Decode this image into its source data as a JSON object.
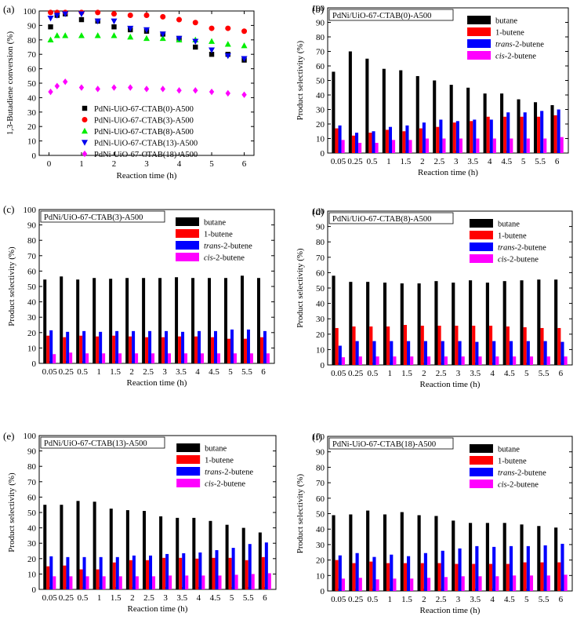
{
  "figure": {
    "panels": [
      "(a)",
      "(b)",
      "(c)",
      "(d)",
      "(e)",
      "(f)"
    ]
  },
  "chart_data": [
    {
      "panel": "(a)",
      "type": "scatter",
      "xlabel": "Reaction time (h)",
      "ylabel": "1,3-Butadiene conversion (%)",
      "xlim": [
        -0.3,
        6.3
      ],
      "ylim": [
        0,
        100
      ],
      "xticks": [
        0,
        1,
        2,
        3,
        4,
        5,
        6
      ],
      "yticks": [
        0,
        10,
        20,
        30,
        40,
        50,
        60,
        70,
        80,
        90,
        100
      ],
      "legend_position": "lower-center",
      "series": [
        {
          "name": "PdNi-UiO-67-CTAB(0)-A500",
          "color": "#000000",
          "marker": "square",
          "x": [
            0.05,
            0.25,
            0.5,
            1,
            1.5,
            2,
            2.5,
            3,
            3.5,
            4,
            4.5,
            5,
            5.5,
            6
          ],
          "y": [
            89,
            97,
            98,
            94,
            93,
            89,
            87,
            86,
            84,
            81,
            75,
            70,
            70,
            66
          ]
        },
        {
          "name": "PdNi-UiO-67-CTAB(3)-A500",
          "color": "#ff0000",
          "marker": "circle",
          "x": [
            0.05,
            0.25,
            0.5,
            1,
            1.5,
            2,
            2.5,
            3,
            3.5,
            4,
            4.5,
            5,
            5.5,
            6
          ],
          "y": [
            99,
            99,
            99,
            99,
            99,
            98,
            97,
            97,
            96,
            94,
            92,
            88,
            88,
            86
          ]
        },
        {
          "name": "PdNi-UiO-67-CTAB(8)-A500",
          "color": "#00ee00",
          "marker": "triangle-up",
          "x": [
            0.05,
            0.25,
            0.5,
            1,
            1.5,
            2,
            2.5,
            3,
            3.5,
            4,
            4.5,
            5,
            5.5,
            6
          ],
          "y": [
            80,
            83,
            83,
            83,
            83,
            83,
            82,
            81,
            81,
            80,
            80,
            79,
            77,
            76
          ]
        },
        {
          "name": "PdNi-UiO-67-CTAB(13)-A500",
          "color": "#0000ee",
          "marker": "triangle-down",
          "x": [
            0.05,
            0.25,
            0.5,
            1,
            1.5,
            2,
            2.5,
            3,
            3.5,
            4,
            4.5,
            5,
            5.5,
            6
          ],
          "y": [
            95,
            97,
            98,
            98,
            93,
            93,
            88,
            87,
            84,
            81,
            79,
            73,
            69,
            67
          ]
        },
        {
          "name": "PdNi-UiO-67-CTAB(18)-A500",
          "color": "#ff00ff",
          "marker": "diamond",
          "x": [
            0.05,
            0.25,
            0.5,
            1,
            1.5,
            2,
            2.5,
            3,
            3.5,
            4,
            4.5,
            5,
            5.5,
            6
          ],
          "y": [
            44,
            48,
            51,
            47,
            46,
            47,
            47,
            46,
            46,
            45,
            45,
            44,
            43,
            42
          ]
        }
      ]
    },
    {
      "panel": "(b)",
      "type": "bar",
      "title": "PdNi/UiO-67-CTAB(0)-A500",
      "xlabel": "Reaction time (h)",
      "ylabel": "Product selectivity (%)",
      "ylim": [
        0,
        100
      ],
      "yticks": [
        0,
        10,
        20,
        30,
        40,
        50,
        60,
        70,
        80,
        90,
        100
      ],
      "categories": [
        "0.05",
        "0.25",
        "0.5",
        "1",
        "1.5",
        "2",
        "2.5",
        "3",
        "3.5",
        "4",
        "4.5",
        "5",
        "5.5",
        "6"
      ],
      "legend_position": "top-right",
      "series": [
        {
          "name": "butane",
          "color": "#000000",
          "values": [
            56,
            70,
            65,
            58,
            57,
            53,
            50,
            47,
            45,
            41,
            41,
            37,
            35,
            33
          ]
        },
        {
          "name": "1-butene",
          "color": "#ff0000",
          "values": [
            17,
            12,
            14,
            16,
            15,
            17,
            18,
            21,
            22,
            25,
            25,
            25,
            25,
            26
          ]
        },
        {
          "name": "trans-2-butene",
          "color": "#0000ff",
          "values": [
            19,
            14,
            15,
            18,
            19,
            21,
            23,
            22,
            23,
            23,
            28,
            28,
            29,
            30
          ]
        },
        {
          "name": "cis-2-butene",
          "color": "#ff00ff",
          "values": [
            9,
            7,
            7,
            9,
            9,
            10,
            10,
            10,
            10,
            10,
            10,
            10,
            10,
            11
          ]
        }
      ]
    },
    {
      "panel": "(c)",
      "type": "bar",
      "title": "PdNi/UiO-67-CTAB(3)-A500",
      "xlabel": "Reaction time (h)",
      "ylabel": "Product selectivity (%)",
      "ylim": [
        0,
        100
      ],
      "yticks": [
        0,
        10,
        20,
        30,
        40,
        50,
        60,
        70,
        80,
        90,
        100
      ],
      "categories": [
        "0.05",
        "0.25",
        "0.5",
        "1",
        "1.5",
        "2",
        "2.5",
        "3",
        "3.5",
        "4",
        "4.5",
        "5",
        "5.5",
        "6"
      ],
      "legend_position": "top-right",
      "series": [
        {
          "name": "butane",
          "color": "#000000",
          "values": [
            54.5,
            56.5,
            54.5,
            55.5,
            55,
            55.5,
            55.5,
            55.5,
            56,
            55.5,
            55.5,
            55.5,
            57,
            55.5
          ]
        },
        {
          "name": "1-butene",
          "color": "#ff0000",
          "values": [
            18,
            17,
            18,
            17.5,
            18,
            17.5,
            17,
            17,
            17.5,
            17.5,
            17,
            16,
            16,
            17
          ]
        },
        {
          "name": "trans-2-butene",
          "color": "#0000ff",
          "values": [
            21.5,
            20.5,
            21,
            20.5,
            21,
            21,
            21,
            21,
            20.5,
            21,
            21,
            22,
            22,
            21
          ]
        },
        {
          "name": "cis-2-butene",
          "color": "#ff00ff",
          "values": [
            6,
            7,
            6.5,
            6.5,
            6.5,
            6.5,
            6.5,
            6.5,
            6.5,
            6.5,
            6.5,
            6.5,
            6.5,
            6.5
          ]
        }
      ]
    },
    {
      "panel": "(d)",
      "type": "bar",
      "title": "PdNi/UiO-67-CTAB(8)-A500",
      "xlabel": "Reaction time (h)",
      "ylabel": "Product selectivity (%)",
      "ylim": [
        0,
        100
      ],
      "yticks": [
        0,
        10,
        20,
        30,
        40,
        50,
        60,
        70,
        80,
        90,
        100
      ],
      "categories": [
        "0.05",
        "0.25",
        "0.5",
        "1",
        "1.5",
        "2",
        "2.5",
        "3",
        "3.5",
        "4",
        "4.5",
        "5",
        "5.5",
        "6"
      ],
      "legend_position": "top-right",
      "series": [
        {
          "name": "butane",
          "color": "#000000",
          "values": [
            58,
            54,
            54,
            53.5,
            53,
            53,
            54.5,
            53.5,
            55,
            53.5,
            54.5,
            55,
            55.5,
            55.5
          ]
        },
        {
          "name": "1-butene",
          "color": "#ff0000",
          "values": [
            24,
            25,
            25,
            25,
            26,
            25.5,
            25.5,
            25.5,
            25.5,
            25.5,
            25,
            24.5,
            24,
            24
          ]
        },
        {
          "name": "trans-2-butene",
          "color": "#0000ff",
          "values": [
            12.5,
            15.5,
            15.5,
            15.5,
            15.5,
            15.5,
            15.5,
            15.5,
            15,
            15.5,
            15.5,
            15.5,
            15.5,
            15
          ]
        },
        {
          "name": "cis-2-butene",
          "color": "#ff00ff",
          "values": [
            5,
            5.5,
            5.5,
            5.5,
            5.5,
            5.5,
            5.5,
            5.5,
            5.5,
            5.5,
            5.5,
            5.5,
            5.5,
            5.5
          ]
        }
      ]
    },
    {
      "panel": "(e)",
      "type": "bar",
      "title": "PdNi/UiO-67-CTAB(13)-A500",
      "xlabel": "Reaction time (h)",
      "ylabel": "Product selectivity (%)",
      "ylim": [
        0,
        100
      ],
      "yticks": [
        0,
        10,
        20,
        30,
        40,
        50,
        60,
        70,
        80,
        90,
        100
      ],
      "categories": [
        "0.05",
        "0.25",
        "0.5",
        "1",
        "1.5",
        "2",
        "2.5",
        "3",
        "3.5",
        "4",
        "4.5",
        "5",
        "5.5",
        "6"
      ],
      "legend_position": "top-right",
      "series": [
        {
          "name": "butane",
          "color": "#000000",
          "values": [
            55,
            55,
            57.5,
            57,
            52.5,
            51.5,
            51,
            47.5,
            46.5,
            46.5,
            44.5,
            42,
            40,
            37
          ]
        },
        {
          "name": "1-butene",
          "color": "#ff0000",
          "values": [
            15,
            15.5,
            13,
            13,
            17.5,
            19,
            19,
            20.5,
            20.5,
            20,
            20.5,
            20.5,
            19,
            21
          ]
        },
        {
          "name": "trans-2-butene",
          "color": "#0000ff",
          "values": [
            21.5,
            21,
            21,
            21,
            21,
            22,
            22,
            23,
            23.5,
            24,
            25.5,
            27,
            29.5,
            30.5
          ]
        },
        {
          "name": "cis-2-butene",
          "color": "#ff00ff",
          "values": [
            8.5,
            8.5,
            8.5,
            8.5,
            8.5,
            8.5,
            8.5,
            9,
            9,
            9,
            9,
            9.5,
            10,
            10.5
          ]
        }
      ]
    },
    {
      "panel": "(f)",
      "type": "bar",
      "title": "PdNi-UiO-67-CTAB(18)-A500",
      "xlabel": "Reaction time (h)",
      "ylabel": "Product selectivity (%)",
      "ylim": [
        0,
        100
      ],
      "yticks": [
        0,
        10,
        20,
        30,
        40,
        50,
        60,
        70,
        80,
        90,
        100
      ],
      "categories": [
        "0.05",
        "0.25",
        "0.5",
        "1",
        "1.5",
        "2",
        "2.5",
        "3",
        "3.5",
        "4",
        "4.5",
        "5",
        "5.5",
        "6"
      ],
      "legend_position": "top-right",
      "series": [
        {
          "name": "butane",
          "color": "#000000",
          "values": [
            49,
            49.5,
            52,
            49.5,
            51,
            49,
            48.5,
            45.5,
            44,
            44,
            44,
            43,
            42,
            41
          ]
        },
        {
          "name": "1-butene",
          "color": "#ff0000",
          "values": [
            20,
            18,
            19,
            18,
            18,
            18,
            18,
            17.5,
            17.5,
            17.5,
            17.5,
            18.5,
            18.5,
            18.5
          ]
        },
        {
          "name": "trans-2-butene",
          "color": "#0000ff",
          "values": [
            23,
            24.5,
            22,
            23.5,
            22.5,
            24.5,
            26,
            27.5,
            29,
            28.5,
            29,
            29,
            29.5,
            30.5
          ]
        },
        {
          "name": "cis-2-butene",
          "color": "#ff00ff",
          "values": [
            8,
            8.5,
            7.5,
            8,
            8,
            8.5,
            9,
            9.5,
            9.5,
            9.5,
            10,
            10,
            10,
            10.5
          ]
        }
      ]
    }
  ]
}
